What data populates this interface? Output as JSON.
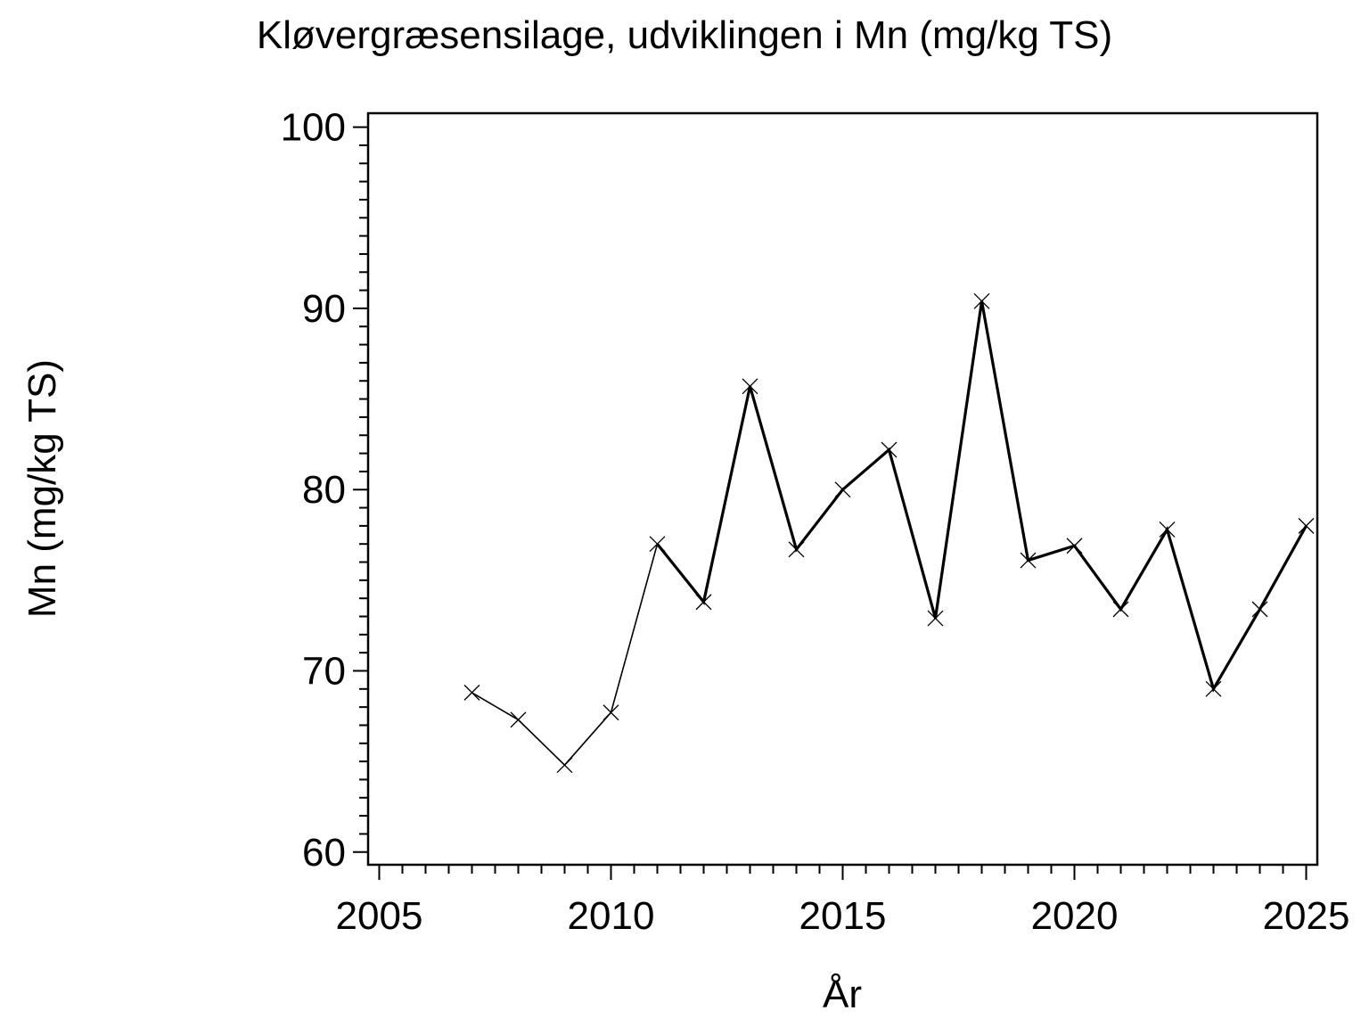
{
  "page": {
    "background": "#ffffff",
    "foreground": "#000000"
  },
  "chart_data": {
    "type": "line",
    "title": "Kløvergræsensilage, udviklingen i Mn (mg/kg TS)",
    "xlabel": "År",
    "ylabel": "Mn (mg/kg TS)",
    "series": [
      {
        "name": "Mn",
        "x": [
          2007,
          2008,
          2009,
          2010,
          2011,
          2012,
          2013,
          2014,
          2015,
          2016,
          2017,
          2018,
          2019,
          2020,
          2021,
          2022,
          2023,
          2024,
          2025
        ],
        "values": [
          68.8,
          67.3,
          64.8,
          67.7,
          77.0,
          73.8,
          85.7,
          76.7,
          80.0,
          82.2,
          72.9,
          90.4,
          76.1,
          76.9,
          73.4,
          77.8,
          69.0,
          73.4,
          78.0
        ],
        "marker": "x",
        "color": "#000000"
      }
    ],
    "xlim": [
      2004.76,
      2025.24
    ],
    "ylim": [
      59.3,
      100.77
    ],
    "x_major_ticks": [
      2005,
      2010,
      2015,
      2020,
      2025
    ],
    "x_minor_step": 0.5,
    "x_minor_range": [
      2005,
      2025
    ],
    "y_major_ticks": [
      60,
      70,
      80,
      90,
      100
    ],
    "y_minor_step": 1,
    "y_minor_range": [
      60,
      100
    ],
    "grid": false,
    "legend": "none",
    "frame": true
  }
}
